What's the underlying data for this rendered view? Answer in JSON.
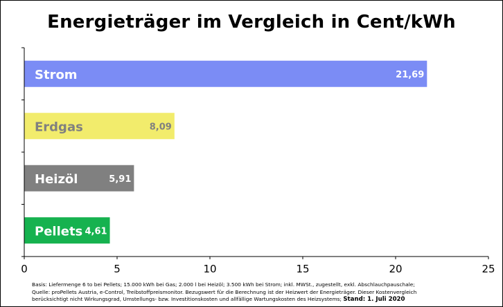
{
  "chart_data": {
    "type": "bar",
    "orientation": "horizontal",
    "title": "Energieträger im Vergleich in Cent/kWh",
    "categories": [
      "Strom",
      "Erdgas",
      "Heizöl",
      "Pellets"
    ],
    "values": [
      21.69,
      8.09,
      5.91,
      4.61
    ],
    "value_labels": [
      "21,69",
      "8,09",
      "5,91",
      "4,61"
    ],
    "colors": [
      "#7b8cf5",
      "#f2ec6c",
      "#808080",
      "#16b24f"
    ],
    "label_colors": [
      "#ffffff",
      "#808080",
      "#ffffff",
      "#ffffff"
    ],
    "xlim": [
      0,
      25
    ],
    "xticks": [
      0,
      5,
      10,
      15,
      20,
      25
    ],
    "xlabel": "",
    "ylabel": "",
    "grid": false,
    "legend": "none"
  },
  "footnote": {
    "line1": "Basis: Liefermenge 6 to bei Pellets; 15.000 kWh bei Gas; 2.000 l bei Heizöl; 3.500 kWh bei Strom; inkl. MWSt., zugestellt, exkl. Abschlauchpauschale;",
    "line2": "Quelle: proPellets Austria, e-Control, Treibstoffpreismonitor. Bezugswert für die Berechnung ist der Heizwert der Energieträger. Dieser Kostenvergleich",
    "line3": "berücksichtigt nicht Wirkungsgrad, Umstellungs- bzw. Investitionskosten und allfällige Wartungskosten des Heizsystems;",
    "stand": "Stand: 1. Juli 2020"
  }
}
